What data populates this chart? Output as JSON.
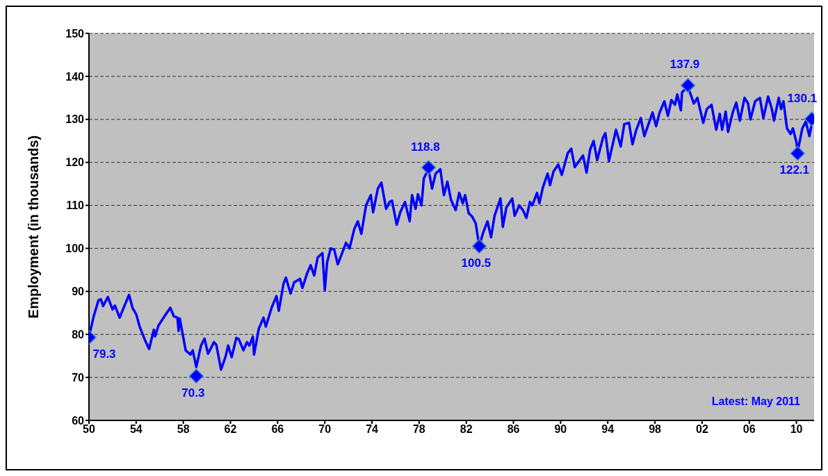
{
  "chart_data": {
    "type": "line",
    "ylabel": "Employment (in thousands)",
    "annotations": [
      "Latest: May 2011"
    ],
    "xlim": [
      1950,
      2011.5
    ],
    "xticks": [
      {
        "value": 1950,
        "label": "50"
      },
      {
        "value": 1954,
        "label": "54"
      },
      {
        "value": 1958,
        "label": "58"
      },
      {
        "value": 1962,
        "label": "62"
      },
      {
        "value": 1966,
        "label": "66"
      },
      {
        "value": 1970,
        "label": "70"
      },
      {
        "value": 1974,
        "label": "74"
      },
      {
        "value": 1978,
        "label": "78"
      },
      {
        "value": 1982,
        "label": "82"
      },
      {
        "value": 1986,
        "label": "86"
      },
      {
        "value": 1990,
        "label": "90"
      },
      {
        "value": 1994,
        "label": "94"
      },
      {
        "value": 1998,
        "label": "98"
      },
      {
        "value": 2002,
        "label": "02"
      },
      {
        "value": 2006,
        "label": "06"
      },
      {
        "value": 2010,
        "label": "10"
      }
    ],
    "ylim": [
      60,
      150
    ],
    "yticks": [
      60,
      70,
      80,
      90,
      100,
      110,
      120,
      130,
      140,
      150
    ],
    "grid": "y",
    "series": [
      {
        "color": "#0000ff",
        "marker": "none",
        "x": [
          1950.0,
          1950.4,
          1950.8,
          1951.0,
          1951.2,
          1951.6,
          1952.0,
          1952.2,
          1952.6,
          1953.0,
          1953.4,
          1953.7,
          1954.0,
          1954.3,
          1954.7,
          1955.1,
          1955.5,
          1955.6,
          1955.9,
          1956.4,
          1956.9,
          1957.2,
          1957.5,
          1957.6,
          1957.7,
          1958.2,
          1958.6,
          1958.8,
          1959.1,
          1959.5,
          1959.8,
          1960.1,
          1960.6,
          1960.8,
          1961.2,
          1961.6,
          1961.8,
          1962.1,
          1962.5,
          1962.7,
          1963.1,
          1963.4,
          1963.6,
          1963.9,
          1964.0,
          1964.4,
          1964.8,
          1965.0,
          1965.5,
          1965.9,
          1966.1,
          1966.5,
          1966.7,
          1967.1,
          1967.4,
          1967.9,
          1968.1,
          1968.5,
          1968.8,
          1969.1,
          1969.4,
          1969.8,
          1970.0,
          1970.2,
          1970.5,
          1970.8,
          1971.1,
          1971.4,
          1971.8,
          1972.1,
          1972.5,
          1972.8,
          1973.1,
          1973.5,
          1973.9,
          1974.1,
          1974.5,
          1974.8,
          1975.2,
          1975.5,
          1975.7,
          1976.1,
          1976.4,
          1976.8,
          1977.2,
          1977.4,
          1977.7,
          1977.9,
          1978.2,
          1978.4,
          1978.8,
          1979.1,
          1979.4,
          1979.8,
          1980.1,
          1980.4,
          1980.7,
          1981.1,
          1981.4,
          1981.7,
          1981.9,
          1982.2,
          1982.5,
          1982.8,
          1983.1,
          1983.4,
          1983.8,
          1984.1,
          1984.4,
          1984.9,
          1985.1,
          1985.4,
          1985.9,
          1986.1,
          1986.5,
          1986.8,
          1987.1,
          1987.4,
          1987.6,
          1988.0,
          1988.2,
          1988.5,
          1988.9,
          1989.1,
          1989.4,
          1989.8,
          1990.1,
          1990.6,
          1990.9,
          1991.2,
          1991.9,
          1992.2,
          1992.5,
          1992.8,
          1993.1,
          1993.6,
          1993.8,
          1994.1,
          1994.7,
          1995.1,
          1995.4,
          1995.8,
          1996.1,
          1996.4,
          1996.8,
          1997.1,
          1997.8,
          1998.1,
          1998.4,
          1998.8,
          1999.1,
          1999.4,
          1999.7,
          1999.9,
          2000.2,
          2000.3,
          2000.8,
          2001.3,
          2001.6,
          2002.1,
          2002.4,
          2002.8,
          2003.2,
          2003.5,
          2003.7,
          2004.0,
          2004.2,
          2004.6,
          2004.9,
          2005.2,
          2005.6,
          2005.9,
          2006.1,
          2006.5,
          2006.9,
          2007.2,
          2007.6,
          2007.9,
          2008.1,
          2008.5,
          2008.7,
          2008.9,
          2009.2,
          2009.5,
          2009.7,
          2010.0,
          2010.1,
          2010.5,
          2010.8,
          2011.1,
          2011.3
        ],
        "values": [
          79.5,
          84.2,
          87.9,
          88.2,
          86.6,
          88.7,
          85.8,
          86.7,
          83.9,
          86.6,
          89.2,
          86.1,
          84.7,
          81.8,
          79.0,
          76.6,
          81.1,
          79.5,
          82.1,
          84.2,
          86.2,
          84.2,
          83.9,
          80.8,
          83.7,
          76.3,
          75.3,
          76.3,
          72.4,
          77.4,
          79.0,
          75.5,
          78.2,
          77.6,
          71.8,
          75.0,
          77.4,
          74.7,
          79.2,
          78.9,
          76.3,
          78.2,
          77.4,
          79.5,
          75.3,
          81.3,
          83.9,
          81.8,
          86.3,
          88.9,
          85.5,
          91.8,
          93.2,
          89.5,
          92.1,
          92.9,
          90.8,
          94.2,
          96.1,
          93.7,
          97.9,
          98.9,
          90.3,
          96.8,
          100.0,
          99.7,
          96.3,
          98.4,
          101.3,
          100.0,
          104.5,
          106.3,
          103.4,
          110.0,
          112.4,
          108.4,
          113.9,
          115.3,
          109.2,
          110.8,
          111.1,
          105.5,
          108.4,
          110.8,
          106.3,
          112.4,
          109.2,
          112.6,
          110.0,
          116.3,
          118.4,
          113.9,
          117.4,
          118.4,
          112.4,
          115.5,
          111.3,
          108.9,
          112.9,
          110.5,
          112.4,
          108.2,
          107.4,
          105.8,
          100.5,
          103.4,
          106.3,
          102.6,
          107.6,
          111.6,
          105.0,
          109.5,
          111.6,
          107.6,
          110.0,
          108.9,
          107.1,
          110.8,
          110.0,
          112.9,
          110.5,
          114.2,
          117.4,
          114.7,
          117.9,
          119.5,
          117.1,
          122.1,
          123.2,
          118.9,
          121.6,
          117.6,
          122.9,
          125.0,
          120.5,
          125.8,
          126.8,
          120.3,
          127.6,
          123.7,
          128.9,
          129.2,
          124.2,
          127.4,
          130.3,
          126.1,
          131.6,
          128.4,
          131.6,
          134.2,
          130.8,
          134.5,
          133.4,
          135.8,
          132.1,
          136.3,
          137.6,
          133.7,
          135.0,
          129.2,
          132.4,
          133.4,
          127.6,
          131.3,
          127.6,
          131.8,
          127.1,
          131.6,
          133.9,
          129.7,
          135.0,
          133.7,
          130.0,
          134.2,
          135.0,
          130.3,
          135.3,
          132.6,
          129.7,
          135.0,
          132.4,
          134.2,
          127.9,
          126.6,
          127.9,
          124.7,
          122.4,
          127.9,
          129.5,
          126.1,
          128.9
        ]
      },
      {
        "type": "scatter",
        "color": "#0000ff",
        "marker": "diamond",
        "x": [
          1950.0,
          1959.1,
          1978.8,
          1983.1,
          2000.8,
          2010.1,
          2011.3
        ],
        "values": [
          79.3,
          70.3,
          118.8,
          100.5,
          137.9,
          122.1,
          130.1
        ],
        "value_labels": [
          "79.3",
          "70.3",
          "118.8",
          "100.5",
          "137.9",
          "122.1",
          "130.1"
        ]
      }
    ]
  }
}
